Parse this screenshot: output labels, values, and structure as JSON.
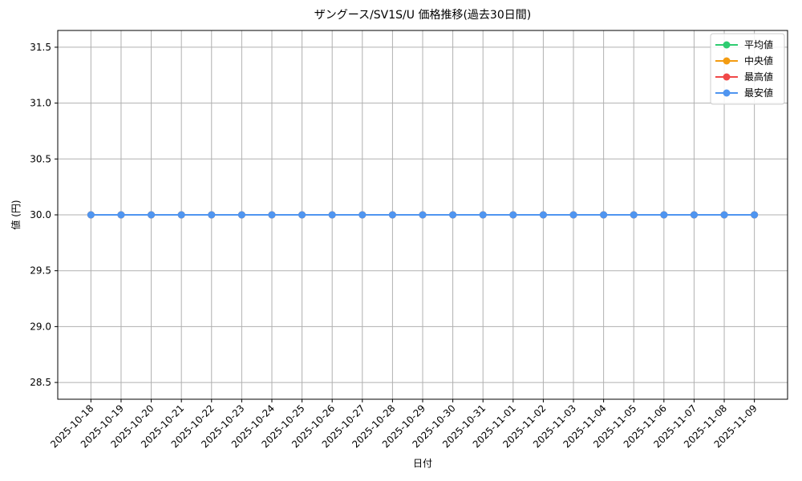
{
  "chart_data": {
    "type": "line",
    "title": "ザングース/SV1S/U 価格推移(過去30日間)",
    "x_label": "日付",
    "y_label": "値 (円)",
    "categories": [
      "2025-10-18",
      "2025-10-19",
      "2025-10-20",
      "2025-10-21",
      "2025-10-22",
      "2025-10-23",
      "2025-10-24",
      "2025-10-25",
      "2025-10-26",
      "2025-10-27",
      "2025-10-28",
      "2025-10-29",
      "2025-10-30",
      "2025-10-31",
      "2025-11-01",
      "2025-11-02",
      "2025-11-03",
      "2025-11-04",
      "2025-11-05",
      "2025-11-06",
      "2025-11-07",
      "2025-11-08",
      "2025-11-09"
    ],
    "series": [
      {
        "name": "平均値",
        "color": "#2ecc71",
        "values": [
          30,
          30,
          30,
          30,
          30,
          30,
          30,
          30,
          30,
          30,
          30,
          30,
          30,
          30,
          30,
          30,
          30,
          30,
          30,
          30,
          30,
          30,
          30
        ]
      },
      {
        "name": "中央値",
        "color": "#f39c12",
        "values": [
          30,
          30,
          30,
          30,
          30,
          30,
          30,
          30,
          30,
          30,
          30,
          30,
          30,
          30,
          30,
          30,
          30,
          30,
          30,
          30,
          30,
          30,
          30
        ]
      },
      {
        "name": "最高値",
        "color": "#f04848",
        "values": [
          30,
          30,
          30,
          30,
          30,
          30,
          30,
          30,
          30,
          30,
          30,
          30,
          30,
          30,
          30,
          30,
          30,
          30,
          30,
          30,
          30,
          30,
          30
        ]
      },
      {
        "name": "最安値",
        "color": "#4f95f0",
        "values": [
          30,
          30,
          30,
          30,
          30,
          30,
          30,
          30,
          30,
          30,
          30,
          30,
          30,
          30,
          30,
          30,
          30,
          30,
          30,
          30,
          30,
          30,
          30
        ]
      }
    ],
    "ylim": [
      28.35,
      31.65
    ],
    "yticks": [
      28.5,
      {
        "value": 29,
        "label": "29.0"
      },
      29.5,
      {
        "value": 30,
        "label": "30.0"
      },
      30.5,
      {
        "value": 31,
        "label": "31.0"
      },
      31.5
    ],
    "grid": true,
    "legend": "upper right"
  }
}
